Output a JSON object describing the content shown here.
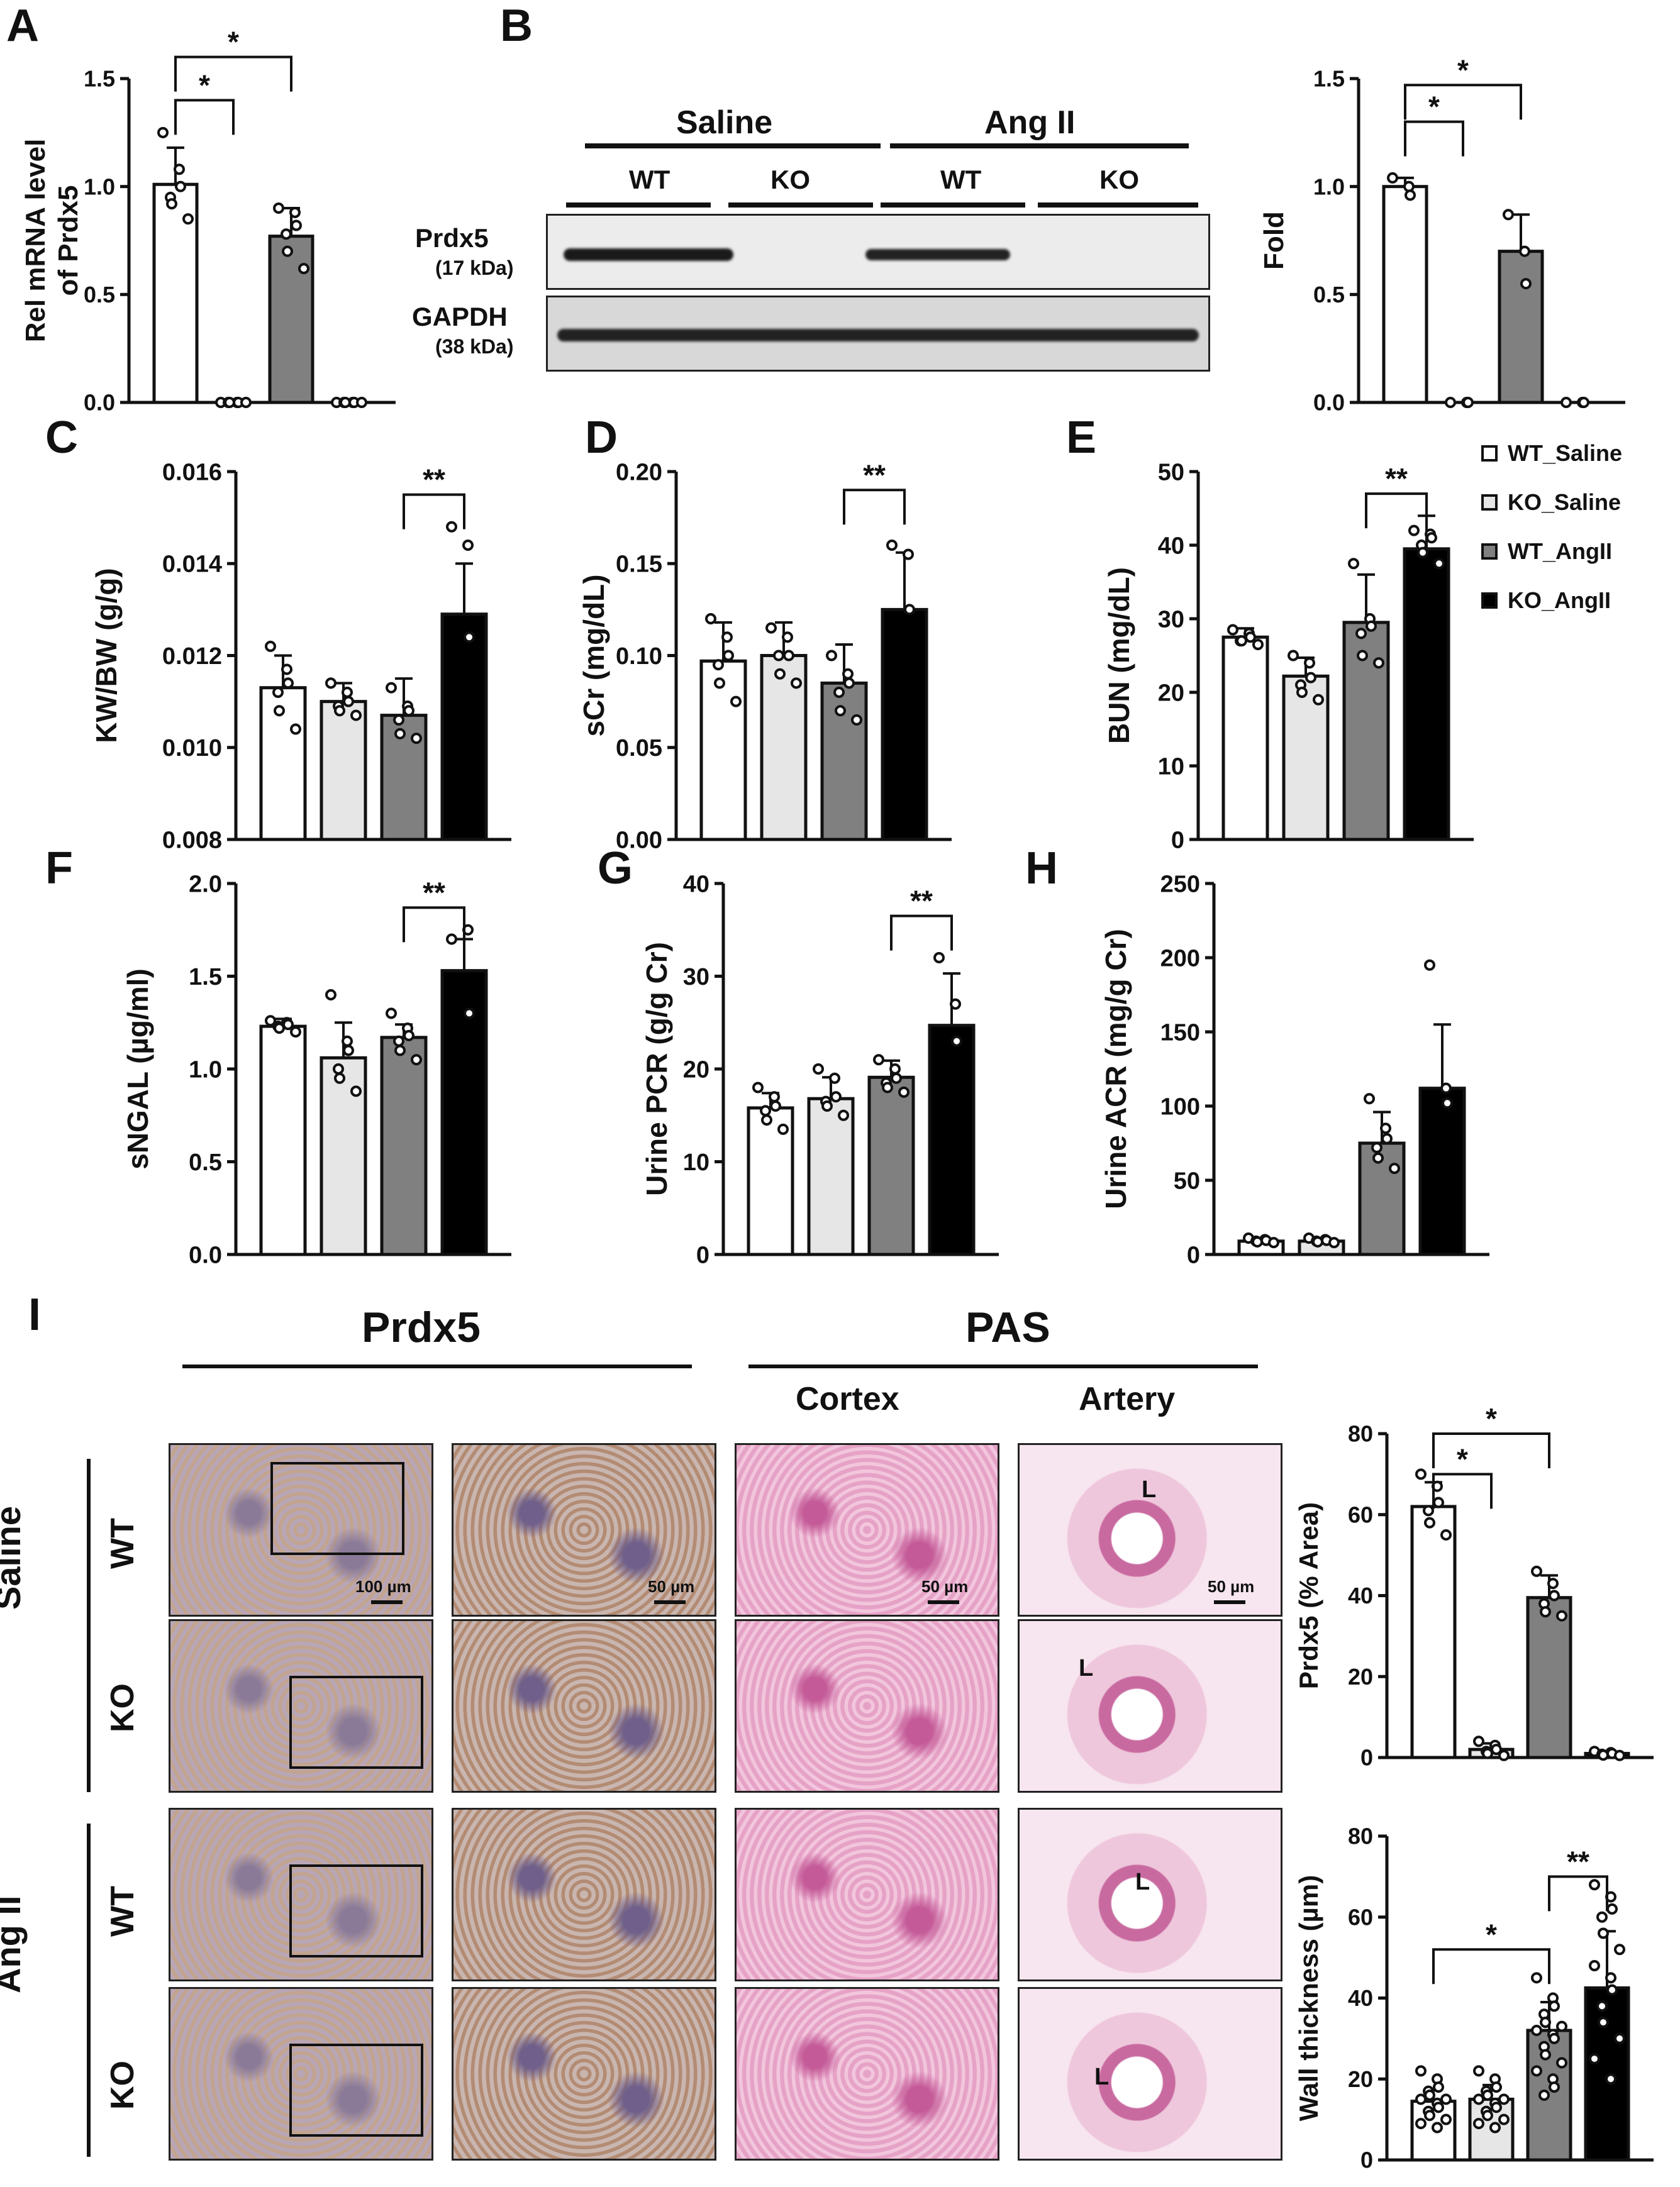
{
  "panels": {
    "A": "A",
    "B": "B",
    "C": "C",
    "D": "D",
    "E": "E",
    "F": "F",
    "G": "G",
    "H": "H",
    "I": "I"
  },
  "legend": {
    "items": [
      {
        "label": "WT_Saline",
        "color": "#ffffff"
      },
      {
        "label": "KO_Saline",
        "color": "#e6e6e6"
      },
      {
        "label": "WT_AngII",
        "color": "#808080"
      },
      {
        "label": "KO_AngII",
        "color": "#000000"
      }
    ]
  },
  "blot": {
    "group_saline": "Saline",
    "group_angii": "Ang II",
    "lane_labels": [
      "WT",
      "KO",
      "WT",
      "KO"
    ],
    "prdx5_label": "Prdx5",
    "prdx5_kda": "(17 kDa)",
    "gapdh_label": "GAPDH",
    "gapdh_kda": "(38 kDa)"
  },
  "histology": {
    "prdx5_header": "Prdx5",
    "pas_header": "PAS",
    "cortex_label": "Cortex",
    "artery_label": "Artery",
    "row_group_saline": "Saline",
    "row_group_angii": "Ang II",
    "row_labels": [
      "WT",
      "KO",
      "WT",
      "KO"
    ],
    "scale_100": "100 µm",
    "scale_50a": "50 µm",
    "scale_50b": "50 µm",
    "scale_50c": "50 µm",
    "lumen": "L"
  },
  "chart_data": [
    {
      "id": "A",
      "type": "bar",
      "ylabel": "Rel mRNA level of Prdx5",
      "ylim": [
        0,
        1.5
      ],
      "yticks": [
        "0.0",
        "0.5",
        "1.0",
        "1.5"
      ],
      "colors": [
        "#ffffff",
        "#e6e6e6",
        "#808080",
        "#000000"
      ],
      "values": [
        1.01,
        0.0,
        0.77,
        0.0
      ],
      "errors": [
        0.17,
        0,
        0.13,
        0
      ],
      "points": [
        [
          1.25,
          1.08,
          1.0,
          0.95,
          0.92,
          0.85
        ],
        [
          0,
          0,
          0,
          0,
          0,
          0
        ],
        [
          0.9,
          0.88,
          0.82,
          0.78,
          0.7,
          0.62
        ],
        [
          0,
          0,
          0,
          0,
          0,
          0
        ]
      ],
      "sig": [
        {
          "from": 0,
          "to": 1,
          "label": "*",
          "level": 1.4
        },
        {
          "from": 0,
          "to": 2,
          "label": "*",
          "level": 1.6
        }
      ]
    },
    {
      "id": "B",
      "type": "bar",
      "ylabel": "Fold",
      "ylim": [
        0,
        1.5
      ],
      "yticks": [
        "0.0",
        "0.5",
        "1.0",
        "1.5"
      ],
      "colors": [
        "#ffffff",
        "#e6e6e6",
        "#808080",
        "#000000"
      ],
      "values": [
        1.0,
        0.0,
        0.7,
        0.0
      ],
      "errors": [
        0.04,
        0,
        0.17,
        0
      ],
      "points": [
        [
          1.04,
          1.0,
          0.96
        ],
        [
          0,
          0,
          0
        ],
        [
          0.87,
          0.7,
          0.55
        ],
        [
          0,
          0,
          0
        ]
      ],
      "sig": [
        {
          "from": 0,
          "to": 1,
          "label": "*",
          "level": 1.3
        },
        {
          "from": 0,
          "to": 2,
          "label": "*",
          "level": 1.47
        }
      ]
    },
    {
      "id": "C",
      "type": "bar",
      "ylabel": "KW/BW (g/g)",
      "ylim": [
        0.008,
        0.016
      ],
      "yticks": [
        "0.008",
        "0.010",
        "0.012",
        "0.014",
        "0.016"
      ],
      "colors": [
        "#ffffff",
        "#e6e6e6",
        "#808080",
        "#000000"
      ],
      "values": [
        0.0113,
        0.011,
        0.0107,
        0.0129
      ],
      "errors": [
        0.0007,
        0.0004,
        0.0008,
        0.0011
      ],
      "points": [
        [
          0.0122,
          0.0117,
          0.0114,
          0.0112,
          0.0108,
          0.0104
        ],
        [
          0.0114,
          0.0112,
          0.011,
          0.0109,
          0.0108,
          0.0107
        ],
        [
          0.0113,
          0.0109,
          0.0108,
          0.0106,
          0.0103,
          0.0102
        ],
        [
          0.0148,
          0.0144,
          0.0124
        ]
      ],
      "sig": [
        {
          "from": 2,
          "to": 3,
          "label": "**",
          "level": 0.0155
        }
      ]
    },
    {
      "id": "D",
      "type": "bar",
      "ylabel": "sCr (mg/dL)",
      "ylim": [
        0,
        0.2
      ],
      "yticks": [
        "0.00",
        "0.05",
        "0.10",
        "0.15",
        "0.20"
      ],
      "colors": [
        "#ffffff",
        "#e6e6e6",
        "#808080",
        "#000000"
      ],
      "values": [
        0.097,
        0.1,
        0.085,
        0.125
      ],
      "errors": [
        0.021,
        0.018,
        0.021,
        0.031
      ],
      "points": [
        [
          0.12,
          0.11,
          0.1,
          0.095,
          0.085,
          0.075
        ],
        [
          0.115,
          0.11,
          0.1,
          0.1,
          0.09,
          0.085
        ],
        [
          0.1,
          0.09,
          0.085,
          0.08,
          0.07,
          0.065
        ],
        [
          0.16,
          0.155,
          0.125
        ]
      ],
      "sig": [
        {
          "from": 2,
          "to": 3,
          "label": "**",
          "level": 0.19
        }
      ]
    },
    {
      "id": "E",
      "type": "bar",
      "ylabel": "BUN (mg/dL)",
      "ylim": [
        0,
        50
      ],
      "yticks": [
        "0",
        "10",
        "20",
        "30",
        "40",
        "50"
      ],
      "colors": [
        "#ffffff",
        "#e6e6e6",
        "#808080",
        "#000000"
      ],
      "values": [
        27.5,
        22.2,
        29.5,
        39.5
      ],
      "errors": [
        1.2,
        2.5,
        6.5,
        4.5
      ],
      "points": [
        [
          28.5,
          28,
          27.5,
          27,
          27,
          26.5
        ],
        [
          25,
          24,
          22,
          21,
          20,
          19
        ],
        [
          37.5,
          30,
          29,
          28,
          25,
          24
        ],
        [
          42,
          41.5,
          41,
          40,
          39,
          37.5
        ]
      ],
      "sig": [
        {
          "from": 2,
          "to": 3,
          "label": "**",
          "level": 47
        }
      ]
    },
    {
      "id": "F",
      "type": "bar",
      "ylabel": "sNGAL (µg/ml)",
      "ylim": [
        0,
        2.0
      ],
      "yticks": [
        "0.0",
        "0.5",
        "1.0",
        "1.5",
        "2.0"
      ],
      "colors": [
        "#ffffff",
        "#e6e6e6",
        "#808080",
        "#000000"
      ],
      "values": [
        1.23,
        1.06,
        1.17,
        1.53
      ],
      "errors": [
        0.04,
        0.19,
        0.07,
        0.17
      ],
      "points": [
        [
          1.26,
          1.25,
          1.24,
          1.23,
          1.22,
          1.2
        ],
        [
          1.4,
          1.15,
          1.1,
          1.0,
          0.95,
          0.88
        ],
        [
          1.3,
          1.22,
          1.18,
          1.15,
          1.1,
          1.05
        ],
        [
          1.7,
          1.75,
          1.3
        ]
      ],
      "sig": [
        {
          "from": 2,
          "to": 3,
          "label": "**",
          "level": 1.87
        }
      ]
    },
    {
      "id": "G",
      "type": "bar",
      "ylabel": "Urine PCR (g/g Cr)",
      "ylim": [
        0,
        40
      ],
      "yticks": [
        "0",
        "10",
        "20",
        "30",
        "40"
      ],
      "colors": [
        "#ffffff",
        "#e6e6e6",
        "#808080",
        "#000000"
      ],
      "values": [
        15.8,
        16.8,
        19.1,
        24.7
      ],
      "errors": [
        1.6,
        2.3,
        1.8,
        5.6
      ],
      "points": [
        [
          18,
          17,
          16,
          15.5,
          14.5,
          13.5
        ],
        [
          20,
          19,
          17,
          16.5,
          16,
          15
        ],
        [
          21,
          20,
          19,
          18.5,
          18,
          17.5
        ],
        [
          32,
          27,
          23
        ]
      ],
      "sig": [
        {
          "from": 2,
          "to": 3,
          "label": "**",
          "level": 36.5
        }
      ]
    },
    {
      "id": "H",
      "type": "bar",
      "ylabel": "Urine ACR (mg/g Cr)",
      "ylim": [
        0,
        250
      ],
      "yticks": [
        "0",
        "50",
        "100",
        "150",
        "200",
        "250"
      ],
      "colors": [
        "#ffffff",
        "#e6e6e6",
        "#808080",
        "#000000"
      ],
      "values": [
        9,
        9,
        75,
        112
      ],
      "errors": [
        1.5,
        1.5,
        21,
        43
      ],
      "points": [
        [
          11,
          10,
          9.5,
          9,
          8.5,
          8
        ],
        [
          11,
          10,
          9.5,
          9,
          8.5,
          8
        ],
        [
          105,
          85,
          78,
          72,
          65,
          58
        ],
        [
          195,
          112,
          102
        ]
      ],
      "sig": []
    },
    {
      "id": "I1",
      "type": "bar",
      "ylabel": "Prdx5 (% Area)",
      "ylim": [
        0,
        80
      ],
      "yticks": [
        "0",
        "20",
        "40",
        "60",
        "80"
      ],
      "colors": [
        "#ffffff",
        "#e6e6e6",
        "#808080",
        "#000000"
      ],
      "values": [
        62,
        2,
        39.5,
        1
      ],
      "errors": [
        6,
        1.5,
        5.5,
        0.5
      ],
      "points": [
        [
          70,
          67,
          63,
          61,
          58,
          55
        ],
        [
          4,
          3,
          2,
          1.5,
          1,
          0.5
        ],
        [
          46,
          43,
          40,
          38,
          36,
          35
        ],
        [
          1.5,
          1.2,
          1,
          0.8,
          0.6,
          0.5
        ]
      ],
      "sig": [
        {
          "from": 0,
          "to": 1,
          "label": "*",
          "level": 70
        },
        {
          "from": 0,
          "to": 2,
          "label": "*",
          "level": 80
        }
      ]
    },
    {
      "id": "I2",
      "type": "bar",
      "ylabel": "Wall thickness (µm)",
      "ylim": [
        0,
        80
      ],
      "yticks": [
        "0",
        "20",
        "40",
        "60",
        "80"
      ],
      "colors": [
        "#ffffff",
        "#e6e6e6",
        "#808080",
        "#000000"
      ],
      "values": [
        14.5,
        15,
        32,
        42.5
      ],
      "errors": [
        3,
        3.5,
        7,
        14
      ],
      "points": [
        [
          22,
          20,
          18,
          17,
          16,
          15,
          15,
          14,
          13,
          12,
          11,
          10,
          9,
          8
        ],
        [
          22,
          20,
          18,
          17,
          16,
          15,
          15,
          14,
          13,
          12,
          11,
          10,
          9,
          8
        ],
        [
          45,
          40,
          38,
          36,
          34,
          33,
          32,
          31,
          30,
          28,
          26,
          24,
          22,
          20,
          18,
          16
        ],
        [
          68,
          65,
          62,
          60,
          56,
          52,
          48,
          45,
          42,
          38,
          34,
          30,
          25,
          20
        ]
      ],
      "sig": [
        {
          "from": 0,
          "to": 2,
          "label": "*",
          "level": 52
        },
        {
          "from": 2,
          "to": 3,
          "label": "**",
          "level": 70
        }
      ]
    }
  ]
}
